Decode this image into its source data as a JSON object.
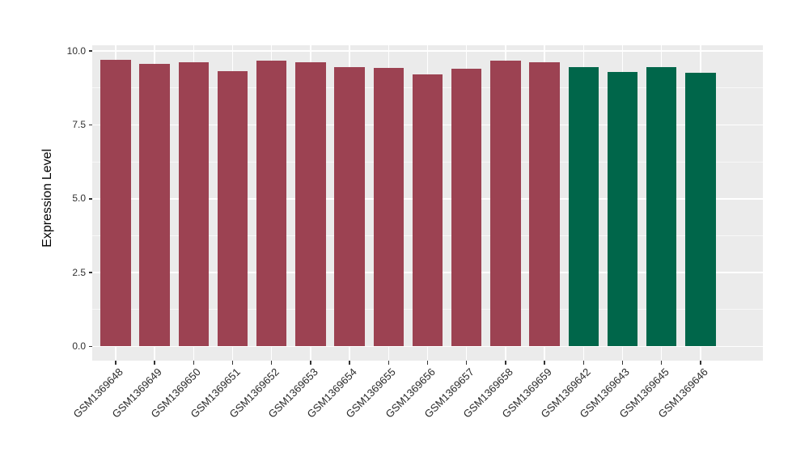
{
  "chart_data": {
    "type": "bar",
    "title": "",
    "xlabel": "",
    "ylabel": "Expression Level",
    "ylim": [
      0,
      10.2
    ],
    "grid": true,
    "legend": false,
    "panel_background": "#EBEBEB",
    "gridline_color": "#FFFFFF",
    "tick_color": "#333333",
    "axis_text_color": "#303030",
    "y_major_ticks": [
      0,
      2.5,
      5,
      7.5,
      10
    ],
    "y_tick_labels": [
      "0.0",
      "2.5",
      "5.0",
      "7.5",
      "10.0"
    ],
    "y_minor_ticks": [
      1.25,
      3.75,
      6.25,
      8.75
    ],
    "categories": [
      "GSM1369648",
      "GSM1369649",
      "GSM1369650",
      "GSM1369651",
      "GSM1369652",
      "GSM1369653",
      "GSM1369654",
      "GSM1369655",
      "GSM1369656",
      "GSM1369657",
      "GSM1369658",
      "GSM1369659",
      "GSM1369642",
      "GSM1369643",
      "GSM1369645",
      "GSM1369646"
    ],
    "values": [
      9.71,
      9.57,
      9.63,
      9.32,
      9.66,
      9.62,
      9.46,
      9.42,
      9.21,
      9.41,
      9.66,
      9.63,
      9.44,
      9.3,
      9.44,
      9.25
    ],
    "bar_colors": [
      "#9C4252",
      "#9C4252",
      "#9C4252",
      "#9C4252",
      "#9C4252",
      "#9C4252",
      "#9C4252",
      "#9C4252",
      "#9C4252",
      "#9C4252",
      "#9C4252",
      "#9C4252",
      "#00664A",
      "#00664A",
      "#00664A",
      "#00664A"
    ],
    "group_colors": {
      "group_1": "#9C4252",
      "group_2": "#00664A"
    }
  }
}
